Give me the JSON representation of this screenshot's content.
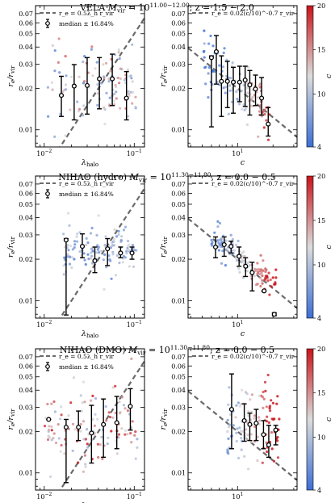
{
  "figure": {
    "colormap": [
      "#3b6fd6",
      "#dcdcdc",
      "#c9141a"
    ],
    "colorbar_label": "c"
  },
  "chart_data": [
    {
      "panel": "row1-left",
      "type": "scatter",
      "title": "VELA M_vir = 10^11.00-12.00, z = 1.5 - 2.0",
      "title_parts": [
        "VELA ",
        "M",
        "vir",
        " = 10",
        "11.00−12.00",
        ", z = 1.5 − 2.0"
      ],
      "xlabel": "λ_halo",
      "ylabel": "r_e/r_vir",
      "xscale": "log",
      "yscale": "log",
      "xlim": [
        0.008,
        0.13
      ],
      "ylim": [
        0.0075,
        0.08
      ],
      "legend": [
        "r_e = 0.5λ_h r_vir",
        "median ± 16.84%"
      ],
      "line": {
        "coef": 0.5,
        "power": 1
      },
      "median_points": [
        {
          "x": 0.0155,
          "y": 0.0178,
          "lo": 0.0125,
          "hi": 0.0245
        },
        {
          "x": 0.0215,
          "y": 0.0208,
          "lo": 0.0118,
          "hi": 0.0298
        },
        {
          "x": 0.03,
          "y": 0.021,
          "lo": 0.013,
          "hi": 0.0335
        },
        {
          "x": 0.041,
          "y": 0.0235,
          "lo": 0.0142,
          "hi": 0.0335
        },
        {
          "x": 0.057,
          "y": 0.0235,
          "lo": 0.015,
          "hi": 0.0355
        },
        {
          "x": 0.082,
          "y": 0.017,
          "lo": 0.0118,
          "hi": 0.0265
        }
      ],
      "scatter_cloud": {
        "x_range": [
          0.011,
          0.105
        ],
        "y_center": 0.021,
        "y_spread": 0.28,
        "c_range": [
          6,
          17
        ],
        "n": 110
      }
    },
    {
      "panel": "row1-right",
      "type": "scatter",
      "xlabel": "c",
      "ylabel": "r_e/r_vir",
      "xscale": "log",
      "yscale": "log",
      "xlim": [
        3.8,
        32
      ],
      "ylim": [
        0.0075,
        0.08
      ],
      "legend": [
        "r_e = 0.02(c/10)^-0.7 r_vir"
      ],
      "line": {
        "coef": 0.02,
        "power": -0.7
      },
      "colorbar": {
        "min": 4,
        "max": 20,
        "ticks": [
          4,
          10,
          15,
          20
        ],
        "label": "c"
      },
      "median_points": [
        {
          "x": 6.0,
          "y": 0.0335,
          "lo": 0.0105,
          "hi": 0.0345
        },
        {
          "x": 6.6,
          "y": 0.037,
          "lo": 0.0215,
          "hi": 0.0485
        },
        {
          "x": 7.3,
          "y": 0.0225,
          "lo": 0.0125,
          "hi": 0.0345
        },
        {
          "x": 8.2,
          "y": 0.0225,
          "lo": 0.0145,
          "hi": 0.0315
        },
        {
          "x": 9.2,
          "y": 0.0222,
          "lo": 0.0132,
          "hi": 0.0285
        },
        {
          "x": 10.4,
          "y": 0.0222,
          "lo": 0.016,
          "hi": 0.029
        },
        {
          "x": 11.6,
          "y": 0.023,
          "lo": 0.0148,
          "hi": 0.029
        },
        {
          "x": 12.7,
          "y": 0.0212,
          "lo": 0.0128,
          "hi": 0.027
        },
        {
          "x": 14.2,
          "y": 0.0198,
          "lo": 0.015,
          "hi": 0.025
        },
        {
          "x": 16.0,
          "y": 0.017,
          "lo": 0.0128,
          "hi": 0.024
        },
        {
          "x": 18.2,
          "y": 0.011,
          "lo": 0.009,
          "hi": 0.0145
        }
      ],
      "scatter_cloud": {
        "x_range": [
          5.0,
          19.0
        ],
        "follow_line": true,
        "y_spread": 0.22,
        "n": 110
      }
    },
    {
      "panel": "row2-left",
      "type": "scatter",
      "title": "NIHAO (hydro) M_vir = 10^11.30-11.80, z = 0.0 - 0.5",
      "title_parts": [
        "NIHAO (hydro) ",
        "M",
        "vir",
        " = 10",
        "11.30−11.80",
        ", z = 0.0 − 0.5"
      ],
      "xlabel": "λ_halo",
      "ylabel": "r_e/r_vir",
      "xscale": "log",
      "yscale": "log",
      "xlim": [
        0.008,
        0.13
      ],
      "ylim": [
        0.0075,
        0.08
      ],
      "legend": [
        "r_e = 0.5λ_h r_vir",
        "median ± 16.84%"
      ],
      "line": {
        "coef": 0.5,
        "power": 1
      },
      "median_points": [
        {
          "x": 0.0175,
          "y": 0.0275,
          "lo": 0.0079,
          "hi": 0.0282
        },
        {
          "x": 0.0265,
          "y": 0.0248,
          "lo": 0.0205,
          "hi": 0.0305
        },
        {
          "x": 0.0365,
          "y": 0.0195,
          "lo": 0.016,
          "hi": 0.0245
        },
        {
          "x": 0.0505,
          "y": 0.0238,
          "lo": 0.018,
          "hi": 0.0282
        },
        {
          "x": 0.0705,
          "y": 0.0222,
          "lo": 0.0205,
          "hi": 0.0245
        },
        {
          "x": 0.0945,
          "y": 0.0222,
          "lo": 0.02,
          "hi": 0.0245
        }
      ],
      "scatter_cloud": {
        "x_range": [
          0.016,
          0.105
        ],
        "y_center": 0.023,
        "y_spread": 0.18,
        "c_range": [
          5,
          13
        ],
        "n": 130
      }
    },
    {
      "panel": "row2-right",
      "type": "scatter",
      "xlabel": "c",
      "ylabel": "r_e/r_vir",
      "xscale": "log",
      "yscale": "log",
      "xlim": [
        3.8,
        32
      ],
      "ylim": [
        0.0075,
        0.08
      ],
      "legend": [
        "r_e = 0.02(c/10)^-0.7 r_vir"
      ],
      "line": {
        "coef": 0.02,
        "power": -0.7
      },
      "colorbar": {
        "min": 4,
        "max": 20,
        "ticks": [
          4,
          10,
          15,
          20
        ],
        "label": "c"
      },
      "median_points": [
        {
          "x": 6.5,
          "y": 0.0245,
          "lo": 0.0205,
          "hi": 0.029
        },
        {
          "x": 7.7,
          "y": 0.0255,
          "lo": 0.021,
          "hi": 0.029
        },
        {
          "x": 8.8,
          "y": 0.0248,
          "lo": 0.0222,
          "hi": 0.027
        },
        {
          "x": 10.3,
          "y": 0.021,
          "lo": 0.0178,
          "hi": 0.0245
        },
        {
          "x": 11.7,
          "y": 0.0178,
          "lo": 0.015,
          "hi": 0.0205
        },
        {
          "x": 13.3,
          "y": 0.016,
          "lo": 0.0118,
          "hi": 0.019
        },
        {
          "x": 16.8,
          "y": 0.0118,
          "lo": 0.0118,
          "hi": 0.0118
        },
        {
          "x": 20.5,
          "y": 0.008,
          "lo": 0.0078,
          "hi": 0.0082
        }
      ],
      "scatter_cloud": {
        "x_range": [
          6.0,
          22.0
        ],
        "follow_line": true,
        "y_spread": 0.12,
        "n": 130
      }
    },
    {
      "panel": "row3-left",
      "type": "scatter",
      "title": "NIHAO (DMO) M_vir = 10^11.30-11.80, z = 0.0 - 0.5",
      "title_parts": [
        "NIHAO (DMO) ",
        "M",
        "vir",
        " = 10",
        "11.30−11.80",
        ", z = 0.0 − 0.5"
      ],
      "xlabel": "λ_halo",
      "ylabel": "r_e/r_vir",
      "xscale": "log",
      "yscale": "log",
      "xlim": [
        0.008,
        0.13
      ],
      "ylim": [
        0.0075,
        0.08
      ],
      "legend": [
        "r_e = 0.5λ_h r_vir",
        "median ± 16.84%"
      ],
      "line": {
        "coef": 0.5,
        "power": 1
      },
      "median_points": [
        {
          "x": 0.0112,
          "y": 0.0245,
          "lo": 0.0245,
          "hi": 0.0245
        },
        {
          "x": 0.0175,
          "y": 0.0215,
          "lo": 0.0085,
          "hi": 0.0245
        },
        {
          "x": 0.024,
          "y": 0.0215,
          "lo": 0.0172,
          "hi": 0.0282
        },
        {
          "x": 0.0335,
          "y": 0.0195,
          "lo": 0.0118,
          "hi": 0.031
        },
        {
          "x": 0.0455,
          "y": 0.0225,
          "lo": 0.013,
          "hi": 0.0345
        },
        {
          "x": 0.064,
          "y": 0.0232,
          "lo": 0.015,
          "hi": 0.036
        },
        {
          "x": 0.0905,
          "y": 0.0305,
          "lo": 0.0205,
          "hi": 0.041
        }
      ],
      "scatter_cloud": {
        "x_range": [
          0.01,
          0.11
        ],
        "y_center": 0.022,
        "y_spread": 0.3,
        "c_range": [
          8,
          20
        ],
        "n": 120
      }
    },
    {
      "panel": "row3-right",
      "type": "scatter",
      "xlabel": "c",
      "ylabel": "r_e/r_vir",
      "xscale": "log",
      "yscale": "log",
      "xlim": [
        3.8,
        32
      ],
      "ylim": [
        0.0075,
        0.08
      ],
      "legend": [
        "r_e = 0.02(c/10)^-0.7 r_vir"
      ],
      "line": {
        "coef": 0.02,
        "power": -0.7
      },
      "colorbar": {
        "min": 4,
        "max": 20,
        "ticks": [
          4,
          10,
          15,
          20
        ],
        "label": "c"
      },
      "median_points": [
        {
          "x": 8.9,
          "y": 0.029,
          "lo": 0.015,
          "hi": 0.0525
        },
        {
          "x": 11.4,
          "y": 0.024,
          "lo": 0.017,
          "hi": 0.0318
        },
        {
          "x": 12.7,
          "y": 0.0225,
          "lo": 0.0172,
          "hi": 0.0272
        },
        {
          "x": 14.4,
          "y": 0.023,
          "lo": 0.0172,
          "hi": 0.029
        },
        {
          "x": 16.6,
          "y": 0.019,
          "lo": 0.015,
          "hi": 0.024
        },
        {
          "x": 18.4,
          "y": 0.016,
          "lo": 0.013,
          "hi": 0.0222
        },
        {
          "x": 21.1,
          "y": 0.0205,
          "lo": 0.016,
          "hi": 0.0222
        }
      ],
      "scatter_cloud": {
        "x_range": [
          8.0,
          23.0
        ],
        "y_center": 0.022,
        "y_spread": 0.28,
        "n": 120
      }
    }
  ]
}
